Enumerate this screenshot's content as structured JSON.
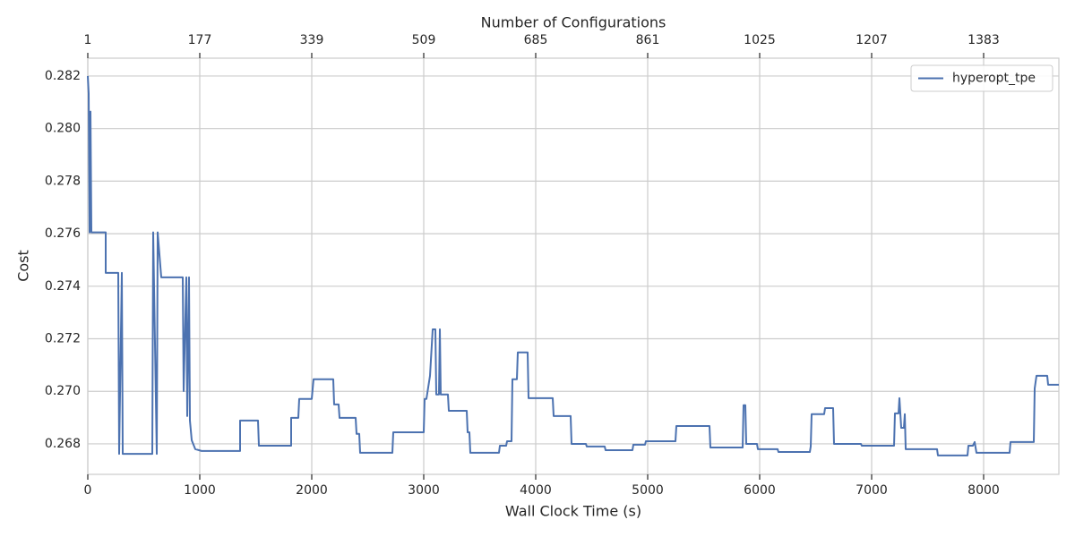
{
  "chart_data": {
    "type": "line",
    "x2label": "Number of Configurations",
    "xlabel": "Wall Clock Time (s)",
    "ylabel": "Cost",
    "x": [
      0,
      8,
      16,
      24,
      32,
      160,
      160,
      272,
      280,
      304,
      312,
      576,
      584,
      616,
      624,
      656,
      848,
      856,
      880,
      888,
      904,
      912,
      928,
      960,
      1016,
      1360,
      1360,
      1520,
      1528,
      1816,
      1816,
      1880,
      1888,
      2000,
      2016,
      2192,
      2200,
      2240,
      2248,
      2392,
      2400,
      2424,
      2432,
      2720,
      2728,
      3000,
      3008,
      3024,
      3056,
      3080,
      3104,
      3112,
      3136,
      3144,
      3152,
      3216,
      3224,
      3384,
      3392,
      3408,
      3416,
      3672,
      3680,
      3736,
      3744,
      3784,
      3792,
      3832,
      3840,
      3928,
      3936,
      4152,
      4160,
      4312,
      4320,
      4448,
      4456,
      4616,
      4624,
      4864,
      4872,
      4976,
      4984,
      5248,
      5256,
      5552,
      5560,
      5848,
      5856,
      5872,
      5880,
      5976,
      5984,
      6160,
      6168,
      6448,
      6456,
      6464,
      6576,
      6584,
      6656,
      6664,
      6904,
      6912,
      7200,
      7208,
      7240,
      7248,
      7264,
      7288,
      7296,
      7304,
      7584,
      7592,
      7856,
      7864,
      7904,
      7920,
      7936,
      8232,
      8240,
      8448,
      8456,
      8472,
      8568,
      8576,
      8672
    ],
    "series": [
      {
        "name": "hyperopt_tpe",
        "color": "#4c72b0",
        "values": [
          0.282,
          0.28133,
          0.27605,
          0.28065,
          0.27605,
          0.27605,
          0.27451,
          0.27451,
          0.26762,
          0.27451,
          0.26762,
          0.26762,
          0.27605,
          0.26762,
          0.27605,
          0.27434,
          0.27434,
          0.27001,
          0.27434,
          0.26906,
          0.27434,
          0.26889,
          0.26814,
          0.2678,
          0.26773,
          0.26773,
          0.26889,
          0.26889,
          0.26793,
          0.26793,
          0.26899,
          0.26899,
          0.26971,
          0.26971,
          0.27046,
          0.27046,
          0.2695,
          0.2695,
          0.26899,
          0.26899,
          0.26838,
          0.26838,
          0.26766,
          0.26766,
          0.26844,
          0.26844,
          0.26971,
          0.26971,
          0.27059,
          0.27236,
          0.27236,
          0.26988,
          0.26988,
          0.27236,
          0.26988,
          0.26988,
          0.26926,
          0.26926,
          0.26844,
          0.26844,
          0.26766,
          0.26766,
          0.26793,
          0.26793,
          0.2681,
          0.2681,
          0.27046,
          0.27046,
          0.27148,
          0.27148,
          0.26974,
          0.26974,
          0.26906,
          0.26906,
          0.268,
          0.268,
          0.2679,
          0.2679,
          0.26776,
          0.26776,
          0.26797,
          0.26797,
          0.2681,
          0.2681,
          0.26868,
          0.26868,
          0.26786,
          0.26786,
          0.26947,
          0.26947,
          0.268,
          0.268,
          0.2678,
          0.2678,
          0.26769,
          0.26769,
          0.2679,
          0.26913,
          0.26913,
          0.26936,
          0.26936,
          0.268,
          0.268,
          0.26793,
          0.26793,
          0.26916,
          0.26916,
          0.26974,
          0.26861,
          0.26861,
          0.26913,
          0.2678,
          0.2678,
          0.26756,
          0.26756,
          0.26793,
          0.26793,
          0.26807,
          0.26766,
          0.26766,
          0.26807,
          0.26807,
          0.27011,
          0.27059,
          0.27059,
          0.27025,
          0.27025
        ]
      }
    ],
    "xlim": [
      0,
      8672
    ],
    "ylim": [
      0.26684,
      0.28268
    ],
    "xticks": [
      0,
      1000,
      2000,
      3000,
      4000,
      5000,
      6000,
      7000,
      8000
    ],
    "x2ticks": [
      1,
      177,
      339,
      509,
      685,
      861,
      1025,
      1207,
      1383
    ],
    "yticks": [
      0.268,
      {
        "value": 0.27,
        "label": "0.270"
      },
      0.272,
      0.274,
      0.276,
      0.278,
      {
        "value": 0.28,
        "label": "0.280"
      },
      0.282
    ],
    "grid": true,
    "legend": "upper right"
  }
}
